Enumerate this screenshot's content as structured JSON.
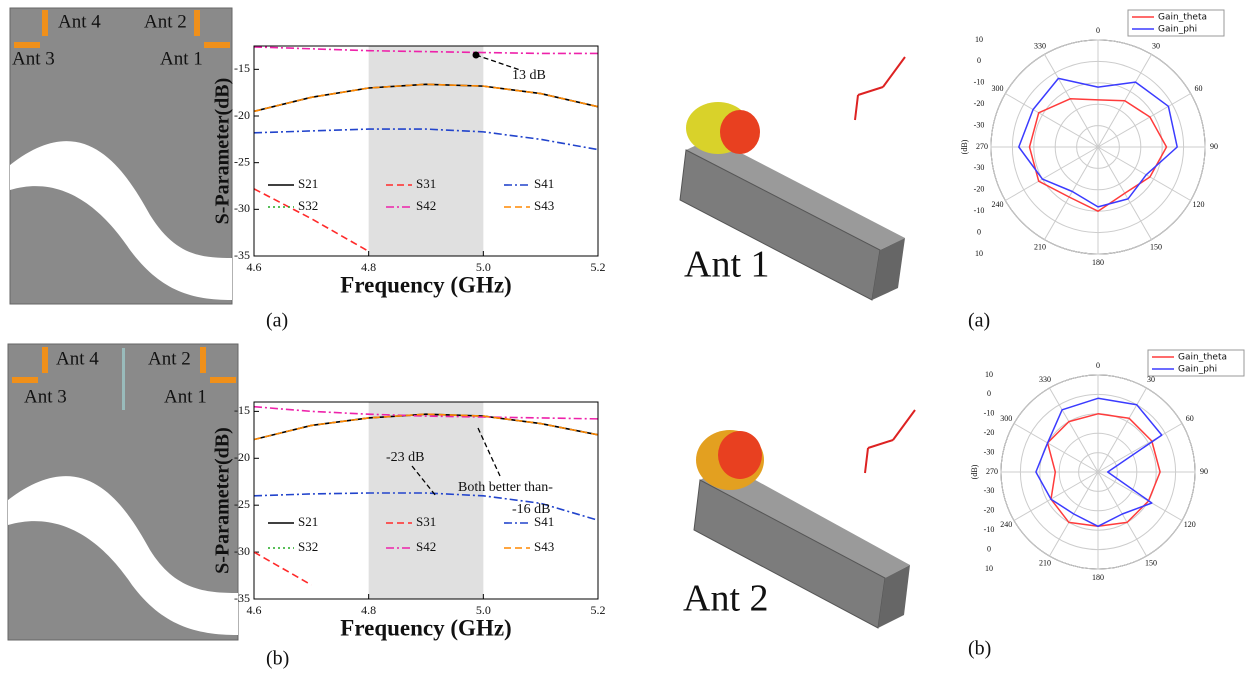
{
  "layouts": [
    {
      "labels": [
        "Ant 4",
        "Ant 2",
        "Ant 3",
        "Ant 1"
      ]
    },
    {
      "labels": [
        "Ant 4",
        "Ant 2",
        "Ant 3",
        "Ant 1"
      ]
    }
  ],
  "renders": [
    {
      "label": "Ant 1"
    },
    {
      "label": "Ant 2"
    }
  ],
  "captions": [
    "(a)",
    "(b)",
    "(a)",
    "(b)"
  ],
  "chart_data": [
    {
      "type": "line",
      "xlabel": "Frequency (GHz)",
      "ylabel": "S-Parameter(dB)",
      "x": [
        4.6,
        4.7,
        4.8,
        4.9,
        5.0,
        5.1,
        5.2
      ],
      "xlim": [
        4.6,
        5.2
      ],
      "xticks": [
        4.6,
        4.8,
        {
          "value": 5,
          "label": "5.0"
        },
        5.2
      ],
      "ylim": [
        -35,
        -12.5
      ],
      "yticks": [
        -35,
        -30,
        -25,
        -20,
        -15
      ],
      "highlight": [
        4.8,
        5.0
      ],
      "annotations": [
        "13 dB"
      ],
      "series": [
        {
          "name": "S21",
          "color": "#000000",
          "style": "solid",
          "values": [
            -19.5,
            -18,
            -17,
            -16.6,
            -16.8,
            -17.6,
            -19
          ]
        },
        {
          "name": "S31",
          "color": "#ff2a2a",
          "style": "dashed",
          "values": [
            -27.8,
            -31,
            -34.5,
            null,
            null,
            null,
            null
          ]
        },
        {
          "name": "S41",
          "color": "#2244cc",
          "style": "dashdot",
          "values": [
            -21.8,
            -21.6,
            -21.4,
            -21.4,
            -21.7,
            -22.5,
            -23.6
          ]
        },
        {
          "name": "S32",
          "color": "#22aa22",
          "style": "dotted",
          "values": [
            null,
            null,
            null,
            null,
            null,
            null,
            null
          ]
        },
        {
          "name": "S42",
          "color": "#ee22aa",
          "style": "dashdot",
          "values": [
            -12.6,
            -12.8,
            -13,
            -13.1,
            -13.2,
            -13.3,
            -13.3
          ]
        },
        {
          "name": "S43",
          "color": "#ff8800",
          "style": "dashed",
          "values": [
            -19.5,
            -18,
            -17,
            -16.6,
            -16.8,
            -17.6,
            -19
          ]
        }
      ]
    },
    {
      "type": "line",
      "xlabel": "Frequency (GHz)",
      "ylabel": "S-Parameter(dB)",
      "x": [
        4.6,
        4.7,
        4.8,
        4.9,
        5.0,
        5.1,
        5.2
      ],
      "xlim": [
        4.6,
        5.2
      ],
      "xticks": [
        4.6,
        4.8,
        {
          "value": 5,
          "label": "5.0"
        },
        5.2
      ],
      "ylim": [
        -35,
        -14
      ],
      "yticks": [
        -35,
        -30,
        -25,
        -20,
        -15
      ],
      "highlight": [
        4.8,
        5.0
      ],
      "annotations": [
        "-23 dB",
        "Both better than-",
        "-16 dB"
      ],
      "series": [
        {
          "name": "S21",
          "color": "#000000",
          "style": "solid",
          "values": [
            -18,
            -16.5,
            -15.7,
            -15.3,
            -15.5,
            -16.3,
            -17.5
          ]
        },
        {
          "name": "S31",
          "color": "#ff2a2a",
          "style": "dashed",
          "values": [
            -30,
            -33.5,
            null,
            null,
            null,
            null,
            null
          ]
        },
        {
          "name": "S41",
          "color": "#2244cc",
          "style": "dashdot",
          "values": [
            -24,
            -23.8,
            -23.7,
            -23.7,
            -24,
            -24.8,
            -26.6
          ]
        },
        {
          "name": "S32",
          "color": "#22aa22",
          "style": "dotted",
          "values": [
            null,
            null,
            null,
            null,
            null,
            null,
            null
          ]
        },
        {
          "name": "S42",
          "color": "#ee22aa",
          "style": "dashdot",
          "values": [
            -14.5,
            -15,
            -15.3,
            -15.5,
            -15.6,
            -15.7,
            -15.8
          ]
        },
        {
          "name": "S43",
          "color": "#ff8800",
          "style": "dashed",
          "values": [
            -18,
            -16.5,
            -15.7,
            -15.3,
            -15.5,
            -16.3,
            -17.5
          ]
        }
      ]
    },
    {
      "type": "polar",
      "rlabel": "(dB)",
      "theta": [
        0,
        30,
        60,
        90,
        120,
        150,
        180,
        210,
        240,
        270,
        300,
        330
      ],
      "thetaticks": [
        0,
        30,
        60,
        90,
        120,
        150,
        180,
        210,
        240,
        270,
        300,
        330
      ],
      "rlim": [
        -40,
        10
      ],
      "rticks": [
        10,
        0,
        -10,
        -20,
        -30
      ],
      "series": [
        {
          "name": "Gain_theta",
          "color": "#ff3b3b",
          "values": [
            -18,
            -15,
            -12,
            -8,
            -12,
            -15,
            -10,
            -13,
            -8,
            -8,
            -8,
            -14
          ]
        },
        {
          "name": "Gain_phi",
          "color": "#3b3bff",
          "values": [
            -12,
            -5,
            -2,
            -3,
            -14,
            -12,
            -12,
            -16,
            -10,
            -3,
            -5,
            -3
          ]
        }
      ]
    },
    {
      "type": "polar",
      "rlabel": "(dB)",
      "theta": [
        0,
        30,
        60,
        90,
        120,
        150,
        180,
        210,
        240,
        270,
        300,
        330
      ],
      "thetaticks": [
        0,
        30,
        60,
        90,
        120,
        150,
        180,
        210,
        240,
        270,
        300,
        330
      ],
      "rlim": [
        -40,
        10
      ],
      "rticks": [
        10,
        0,
        -10,
        -20,
        -30
      ],
      "series": [
        {
          "name": "Gain_theta",
          "color": "#ff3b3b",
          "values": [
            -10,
            -8,
            -8,
            -8,
            -10,
            -10,
            -12,
            -10,
            -12,
            -18,
            -10,
            -10
          ]
        },
        {
          "name": "Gain_phi",
          "color": "#3b3bff",
          "values": [
            -2,
            0,
            -2,
            -35,
            -8,
            -15,
            -12,
            -15,
            -12,
            -8,
            -10,
            -3
          ]
        }
      ]
    }
  ]
}
